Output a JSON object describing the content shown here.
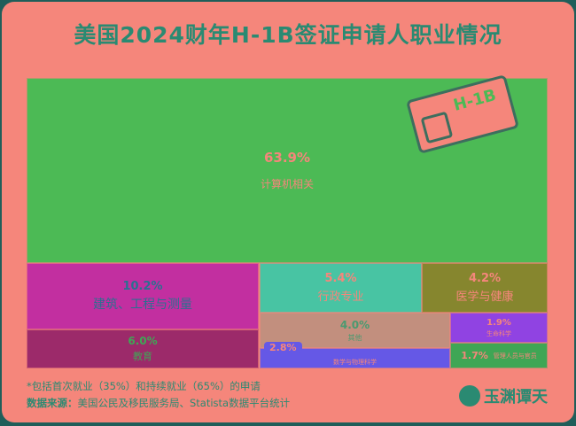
{
  "title": "美国2024财年H-1B签证申请人职业情况",
  "chart_data": {
    "type": "treemap",
    "title": "美国2024财年H-1B签证申请人职业情况",
    "categories": [
      "计算机相关",
      "建筑、工程与测量",
      "教育",
      "行政专业",
      "医学与健康",
      "其他",
      "数学与物理科学",
      "生命科学",
      "管理人员与官员"
    ],
    "values": [
      63.9,
      10.2,
      6.0,
      5.4,
      4.2,
      4.0,
      2.8,
      1.9,
      1.7
    ],
    "labels": [
      "63.9%",
      "10.2%",
      "6.0%",
      "5.4%",
      "4.2%",
      "4.0%",
      "2.8%",
      "1.9%",
      "1.7%"
    ],
    "colors": [
      "#4cba55",
      "#c22fa0",
      "#9c2a6a",
      "#48c4a3",
      "#86862e",
      "#c28f7e",
      "#6558e6",
      "#9043e2",
      "#3fa655"
    ]
  },
  "card_text": "H-1B",
  "footnote": "*包括首次就业（35%）和持续就业（65%）的申请",
  "source_label": "数据来源：",
  "source": "美国公民及移民服务局、Statista数据平台统计",
  "logo_text": "玉渊谭天"
}
